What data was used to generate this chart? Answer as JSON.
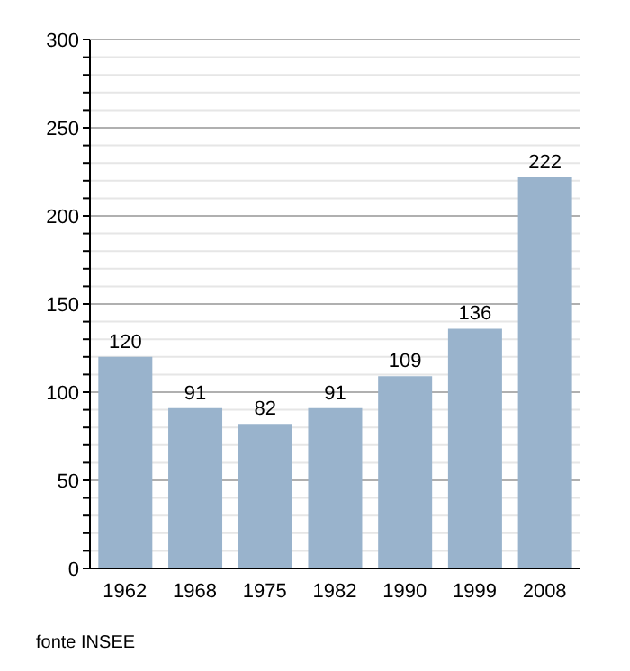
{
  "chart_data": {
    "type": "bar",
    "categories": [
      "1962",
      "1968",
      "1975",
      "1982",
      "1990",
      "1999",
      "2008"
    ],
    "values": [
      120,
      91,
      82,
      91,
      109,
      136,
      222
    ],
    "color": "#99b3cc",
    "data_labels": true,
    "grid": "y",
    "ylim": [
      0,
      300
    ],
    "yticks": [
      0,
      {
        "value": 10,
        "label": null
      },
      {
        "value": 20,
        "label": null
      },
      {
        "value": 30,
        "label": null
      },
      {
        "value": 40,
        "label": null
      },
      50,
      {
        "value": 60,
        "label": null
      },
      {
        "value": 70,
        "label": null
      },
      {
        "value": 80,
        "label": null
      },
      {
        "value": 90,
        "label": null
      },
      100,
      {
        "value": 110,
        "label": null
      },
      {
        "value": 120,
        "label": null
      },
      {
        "value": 130,
        "label": null
      },
      {
        "value": 140,
        "label": null
      },
      150,
      {
        "value": 160,
        "label": null
      },
      {
        "value": 170,
        "label": null
      },
      {
        "value": 180,
        "label": null
      },
      {
        "value": 190,
        "label": null
      },
      200,
      {
        "value": 210,
        "label": null
      },
      {
        "value": 220,
        "label": null
      },
      {
        "value": 230,
        "label": null
      },
      {
        "value": 240,
        "label": null
      },
      250,
      {
        "value": 260,
        "label": null
      },
      {
        "value": 270,
        "label": null
      },
      {
        "value": 280,
        "label": null
      },
      {
        "value": 290,
        "label": null
      },
      300
    ],
    "annotations": [
      "fonte INSEE"
    ]
  }
}
